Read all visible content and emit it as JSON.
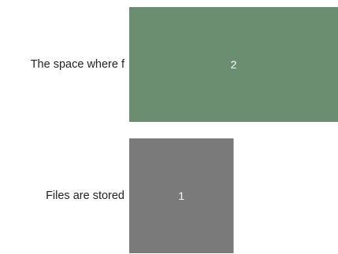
{
  "chart_data": {
    "type": "bar",
    "orientation": "horizontal",
    "categories": [
      "The space where f",
      "Files are stored"
    ],
    "values": [
      2,
      1
    ],
    "data_labels": [
      "2",
      "1"
    ],
    "xlim": [
      0,
      2
    ],
    "grid": false,
    "legend": "none",
    "colors": [
      "#6b8e71",
      "#7a7a7a"
    ]
  }
}
